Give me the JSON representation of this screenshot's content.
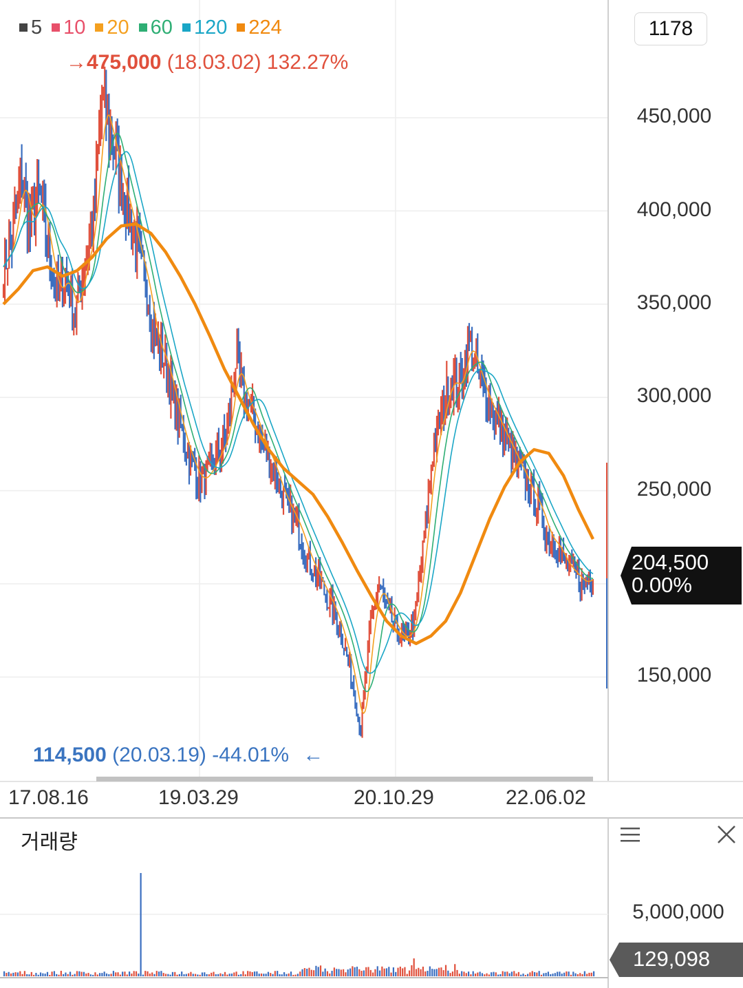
{
  "legend": [
    {
      "label": "5",
      "color": "#444444"
    },
    {
      "label": "10",
      "color": "#e8506a"
    },
    {
      "label": "20",
      "color": "#f4a020"
    },
    {
      "label": "60",
      "color": "#2eae74"
    },
    {
      "label": "120",
      "color": "#1aa6c6"
    },
    {
      "label": "224",
      "color": "#f08a10"
    }
  ],
  "count_box": "1178",
  "high_annotation": {
    "arrow": "→",
    "value": "475,000",
    "date": "(18.03.02)",
    "pct": "132.27%"
  },
  "low_annotation": {
    "value": "114,500",
    "date": "(20.03.19)",
    "pct": "-44.01%",
    "arrow": "←"
  },
  "price_tag": {
    "price": "204,500",
    "change": "0.00%"
  },
  "volume_panel": {
    "title": "거래량",
    "tick": "5,000,000",
    "current": "129,098"
  },
  "icons": {
    "menu": "menu-icon",
    "close": "close-icon"
  },
  "colors": {
    "candle_up": "#e0503c",
    "candle_down": "#3a6ec0",
    "grid": "#eeeeee",
    "tag_bg": "#111111",
    "vol_tag_bg": "#5a5a5a"
  },
  "chart_data": {
    "type": "line",
    "title": "",
    "xlabel": "",
    "ylabel": "",
    "x_ticks": [
      "17.08.16",
      "19.03.29",
      "20.10.29",
      "22.06.02"
    ],
    "y_ticks": [
      450000,
      400000,
      350000,
      300000,
      250000,
      150000
    ],
    "y_tick_labels": [
      "450,000",
      "400,000",
      "350,000",
      "300,000",
      "250,000",
      "150,000"
    ],
    "ylim": [
      100000,
      480000
    ],
    "grid": true,
    "series": [
      {
        "name": "price",
        "values": [
          370000,
          385000,
          420000,
          390000,
          410000,
          380000,
          355000,
          365000,
          345000,
          370000,
          390000,
          460000,
          440000,
          420000,
          400000,
          380000,
          360000,
          330000,
          320000,
          300000,
          280000,
          265000,
          255000,
          260000,
          270000,
          280000,
          320000,
          300000,
          290000,
          275000,
          265000,
          250000,
          240000,
          230000,
          215000,
          205000,
          195000,
          185000,
          170000,
          150000,
          120000,
          175000,
          200000,
          185000,
          175000,
          170000,
          180000,
          220000,
          270000,
          290000,
          310000,
          305000,
          330000,
          315000,
          300000,
          290000,
          280000,
          270000,
          260000,
          250000,
          240000,
          225000,
          220000,
          210000,
          205000,
          200000,
          204500
        ]
      },
      {
        "name": "224",
        "values": [
          350000,
          358000,
          368000,
          370000,
          365000,
          368000,
          375000,
          385000,
          392000,
          393000,
          388000,
          378000,
          365000,
          350000,
          333000,
          315000,
          300000,
          285000,
          272000,
          262000,
          255000,
          248000,
          236000,
          222000,
          207000,
          193000,
          180000,
          172000,
          168000,
          172000,
          180000,
          195000,
          215000,
          235000,
          252000,
          265000,
          272000,
          270000,
          258000,
          240000,
          224000
        ]
      }
    ],
    "volume": {
      "spike_label": "",
      "max_tick": 5000000
    }
  }
}
